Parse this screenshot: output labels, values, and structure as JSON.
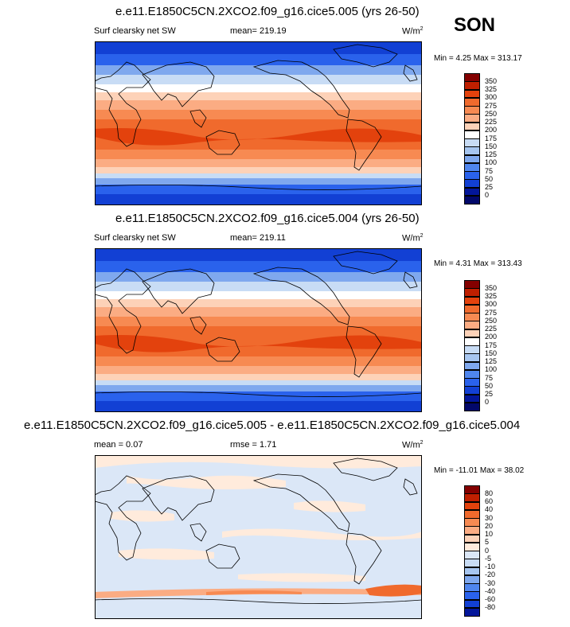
{
  "season": "SON",
  "panels": [
    {
      "title": "e.e11.E1850C5CN.2XCO2.f09_g16.cice5.005 (yrs 26-50)",
      "left_label": "Surf clearsky net SW",
      "center_label": "mean= 219.19",
      "units": "W/m",
      "units_exp": "2",
      "minmax": "Min =   4.25 Max = 313.17",
      "colorbar_labels": [
        "350",
        "325",
        "300",
        "275",
        "250",
        "225",
        "200",
        "175",
        "150",
        "125",
        "100",
        "75",
        "50",
        "25",
        "0"
      ],
      "colorbar_colors": [
        "#840000",
        "#bf1f00",
        "#e3420d",
        "#f06a2d",
        "#f78a52",
        "#fbac83",
        "#fdd2b8",
        "#ffffff",
        "#c8dcf5",
        "#a7c6f0",
        "#7fa8ee",
        "#4f86ee",
        "#2a62ec",
        "#1240d4",
        "#03169a",
        "#02086a"
      ]
    },
    {
      "title": "e.e11.E1850C5CN.2XCO2.f09_g16.cice5.004 (yrs 26-50)",
      "left_label": "Surf clearsky net SW",
      "center_label": "mean= 219.11",
      "units": "W/m",
      "units_exp": "2",
      "minmax": "Min =   4.31 Max = 313.43",
      "colorbar_labels": [
        "350",
        "325",
        "300",
        "275",
        "250",
        "225",
        "200",
        "175",
        "150",
        "125",
        "100",
        "75",
        "50",
        "25",
        "0"
      ],
      "colorbar_colors": [
        "#840000",
        "#bf1f00",
        "#e3420d",
        "#f06a2d",
        "#f78a52",
        "#fbac83",
        "#fdd2b8",
        "#ffffff",
        "#c8dcf5",
        "#a7c6f0",
        "#7fa8ee",
        "#4f86ee",
        "#2a62ec",
        "#1240d4",
        "#03169a",
        "#02086a"
      ]
    },
    {
      "title": "e.e11.E1850C5CN.2XCO2.f09_g16.cice5.005 - e.e11.E1850C5CN.2XCO2.f09_g16.cice5.004",
      "left_label": "mean =   0.07",
      "center_label": "rmse =   1.71",
      "units": "W/m",
      "units_exp": "2",
      "minmax": "Min = -11.01 Max =  38.02",
      "colorbar_labels": [
        "80",
        "60",
        "40",
        "30",
        "20",
        "10",
        "5",
        "0",
        "-5",
        "-10",
        "-20",
        "-30",
        "-40",
        "-60",
        "-80"
      ],
      "colorbar_colors": [
        "#840000",
        "#bf1f00",
        "#e3420d",
        "#f06a2d",
        "#f78a52",
        "#fbac83",
        "#fdd2b8",
        "#ffebdc",
        "#dbe7f7",
        "#c8dcf5",
        "#a7c6f0",
        "#7fa8ee",
        "#4f86ee",
        "#2a62ec",
        "#1240d4",
        "#03169a"
      ]
    }
  ]
}
